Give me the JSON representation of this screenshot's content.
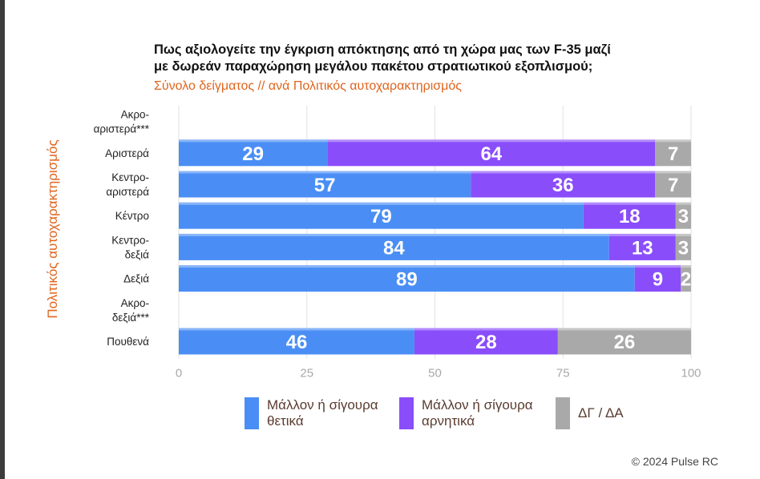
{
  "title_line1": "Πως αξιολογείτε την έγκριση απόκτησης από τη χώρα μας των F-35 μαζί",
  "title_line2": "με δωρεάν παραχώρηση μεγάλου πακέτου στρατιωτικού εξοπλισμού;",
  "subtitle": "Σύνολο δείγματος // ανά Πολιτικός αυτοχαρακτηρισμός",
  "copyright": "© 2024 Pulse RC",
  "colors": {
    "positive": "#4a8ef5",
    "negative": "#8a4dfa",
    "dk": "#a9a9a9",
    "accent": "#e0641e"
  },
  "chart_data": {
    "type": "bar",
    "orientation": "horizontal",
    "stacked": true,
    "ylabel": "Πολιτικός αυτοχαρακτηρισμός",
    "xlim": [
      0,
      100
    ],
    "xticks": [
      0,
      25,
      50,
      75,
      100
    ],
    "categories": [
      [
        "Ακρο-",
        "αριστερά***"
      ],
      [
        "Αριστερά"
      ],
      [
        "Κεντρο-",
        "αριστερά"
      ],
      [
        "Κέντρο"
      ],
      [
        "Κεντρο-",
        "δεξιά"
      ],
      [
        "Δεξιά"
      ],
      [
        "Ακρο-",
        "δεξιά***"
      ],
      [
        "Πουθενά"
      ]
    ],
    "series": [
      {
        "name": "Μάλλον ή σίγουρα θετικά",
        "legend_lines": [
          "Μάλλον ή σίγουρα",
          "θετικά"
        ],
        "color": "#4a8ef5",
        "values": [
          null,
          29,
          57,
          79,
          84,
          89,
          null,
          46
        ]
      },
      {
        "name": "Μάλλον ή σίγουρα αρνητικά",
        "legend_lines": [
          "Μάλλον ή σίγουρα",
          "αρνητικά"
        ],
        "color": "#8a4dfa",
        "values": [
          null,
          64,
          36,
          18,
          13,
          9,
          null,
          28
        ]
      },
      {
        "name": "ΔΓ / ΔΑ",
        "legend_lines": [
          "ΔΓ / ΔΑ"
        ],
        "color": "#a9a9a9",
        "values": [
          null,
          7,
          7,
          3,
          3,
          2,
          null,
          26
        ]
      }
    ],
    "grid": "vertical"
  }
}
